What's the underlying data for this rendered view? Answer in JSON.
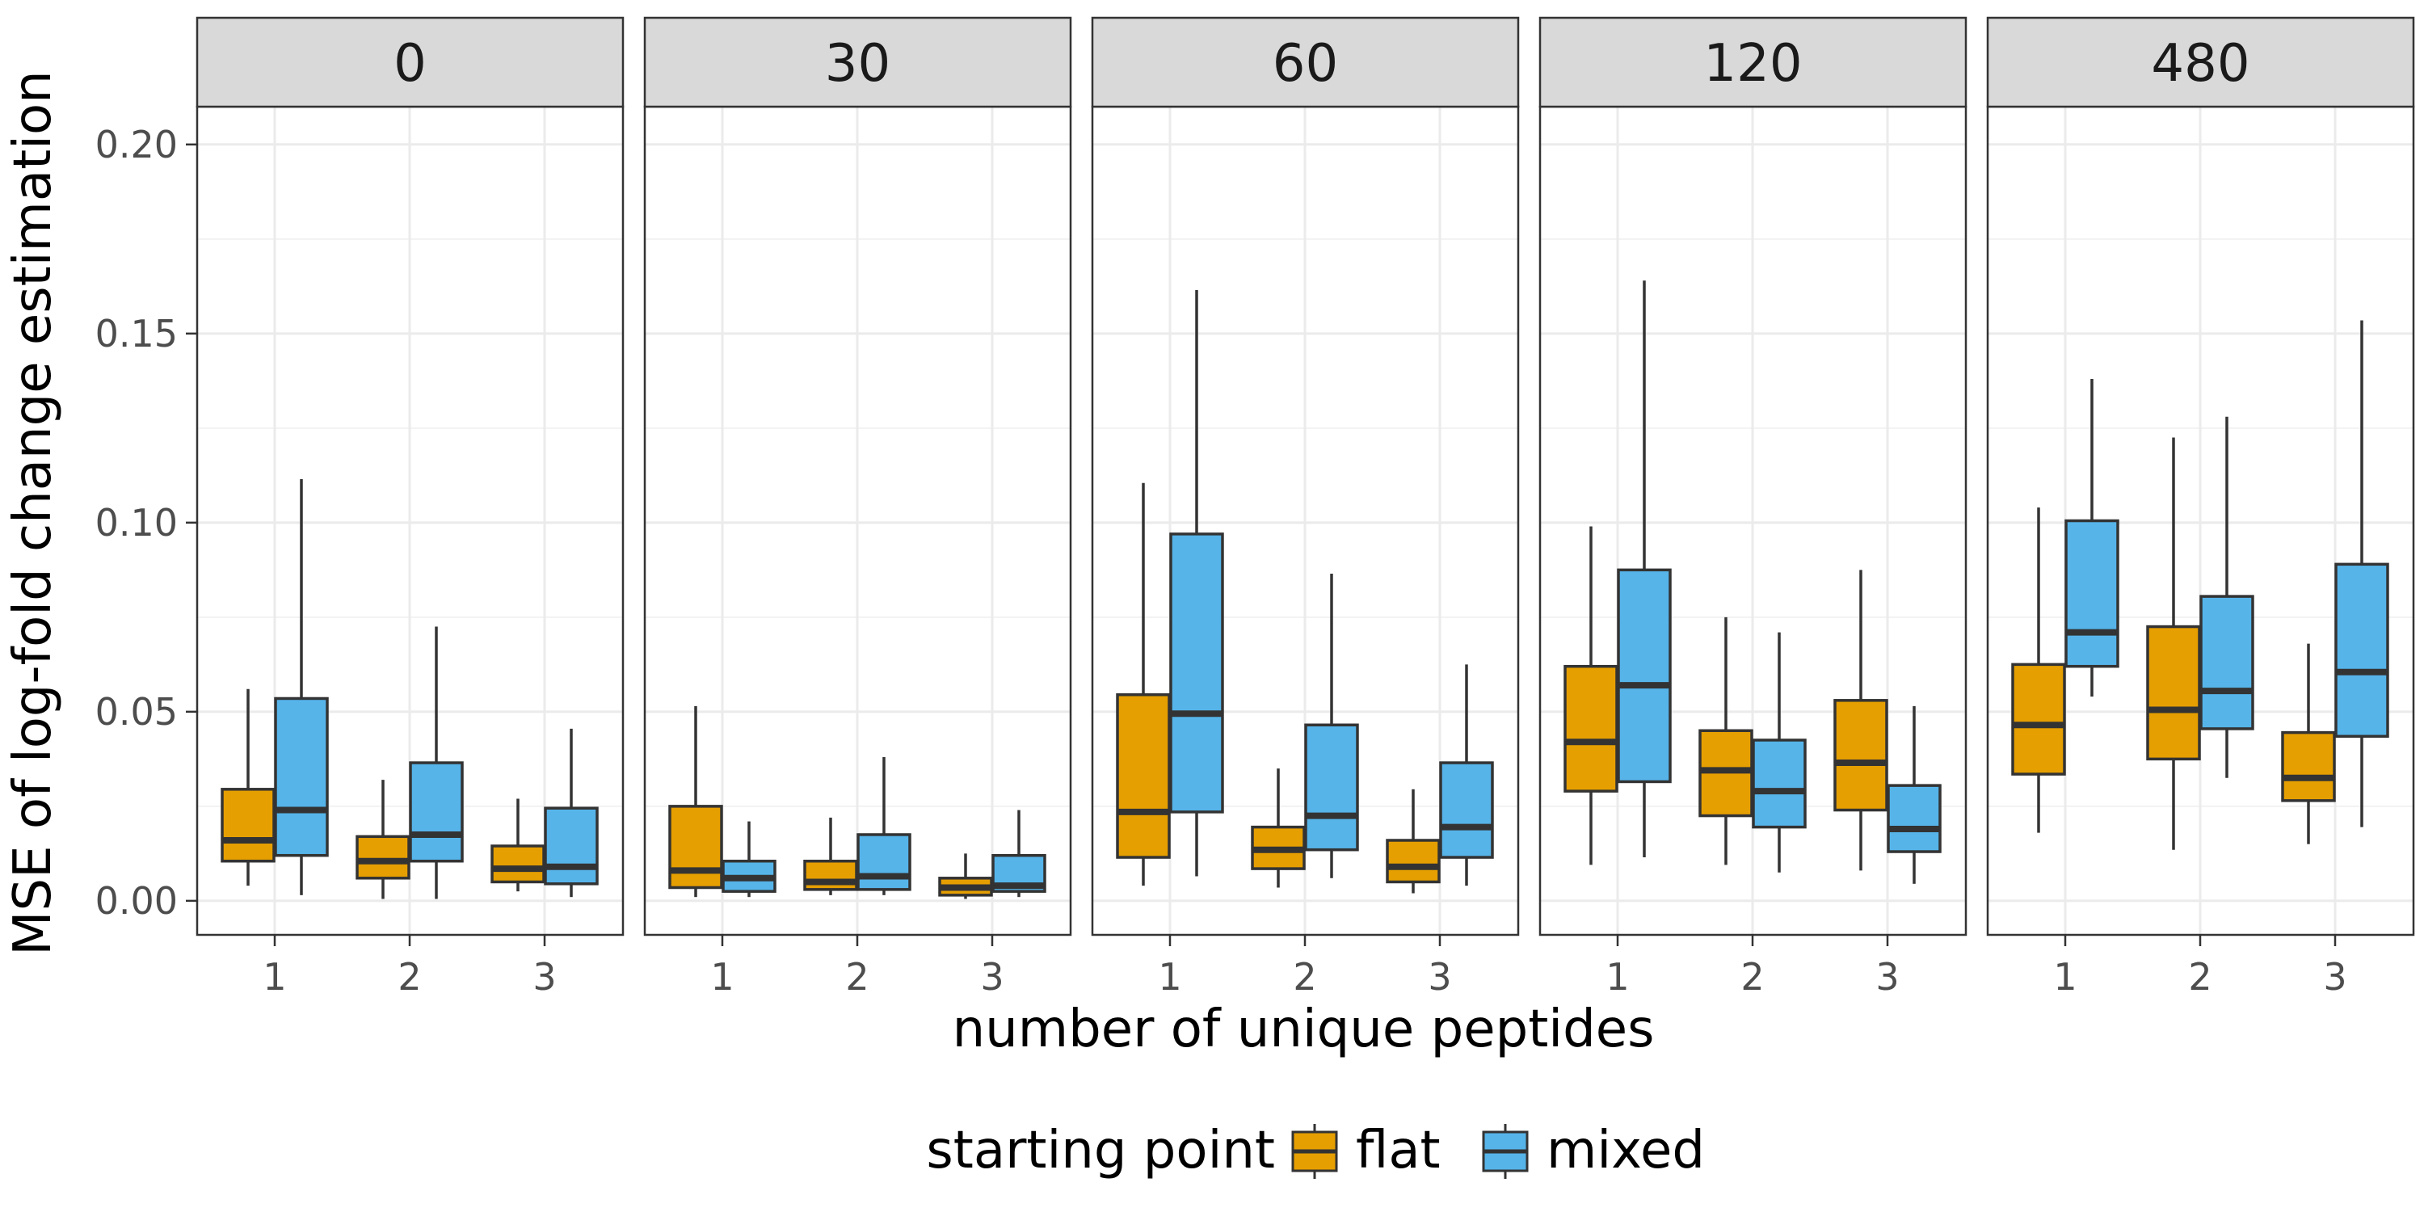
{
  "chart_data": {
    "type": "boxplot",
    "facets": [
      "0",
      "30",
      "60",
      "120",
      "480"
    ],
    "categories": [
      "1",
      "2",
      "3"
    ],
    "xlabel": "number of unique peptides",
    "ylabel": "MSE of log-fold change estimation",
    "ylim": [
      -0.009,
      0.21
    ],
    "yticks": [
      0.0,
      0.05,
      0.1,
      0.15,
      0.2
    ],
    "ytick_labels": [
      "0.00",
      "0.05",
      "0.10",
      "0.15",
      "0.20"
    ],
    "grid": true,
    "legend": {
      "title": "starting point",
      "position": "bottom",
      "entries": [
        "flat",
        "mixed"
      ]
    },
    "colors": {
      "flat": "#E69F00",
      "mixed": "#56B4E9"
    },
    "series": [
      {
        "name": "flat",
        "boxes": [
          [
            [
              0.004,
              0.0105,
              0.016,
              0.0295,
              0.056
            ],
            [
              0.0005,
              0.006,
              0.0105,
              0.017,
              0.032
            ],
            [
              0.0025,
              0.005,
              0.0085,
              0.0145,
              0.027
            ]
          ],
          [
            [
              0.001,
              0.0035,
              0.008,
              0.025,
              0.0515
            ],
            [
              0.0015,
              0.003,
              0.005,
              0.0105,
              0.022
            ],
            [
              0.0005,
              0.0015,
              0.0035,
              0.006,
              0.0125
            ]
          ],
          [
            [
              0.004,
              0.0115,
              0.0235,
              0.0545,
              0.1105
            ],
            [
              0.0035,
              0.0085,
              0.0135,
              0.0195,
              0.035
            ],
            [
              0.002,
              0.005,
              0.009,
              0.016,
              0.0295
            ]
          ],
          [
            [
              0.0095,
              0.029,
              0.042,
              0.062,
              0.099
            ],
            [
              0.0095,
              0.0225,
              0.0345,
              0.045,
              0.075
            ],
            [
              0.008,
              0.024,
              0.0365,
              0.053,
              0.0875
            ]
          ],
          [
            [
              0.018,
              0.0335,
              0.0465,
              0.0625,
              0.104
            ],
            [
              0.0135,
              0.0375,
              0.0505,
              0.0725,
              0.1225
            ],
            [
              0.015,
              0.0265,
              0.0325,
              0.0445,
              0.068
            ]
          ]
        ]
      },
      {
        "name": "mixed",
        "boxes": [
          [
            [
              0.0015,
              0.012,
              0.024,
              0.0535,
              0.1115
            ],
            [
              0.0005,
              0.0105,
              0.0175,
              0.0365,
              0.0725
            ],
            [
              0.001,
              0.0045,
              0.009,
              0.0245,
              0.0455
            ]
          ],
          [
            [
              0.001,
              0.0025,
              0.006,
              0.0105,
              0.021
            ],
            [
              0.0015,
              0.003,
              0.0065,
              0.0175,
              0.038
            ],
            [
              0.001,
              0.0025,
              0.004,
              0.012,
              0.024
            ]
          ],
          [
            [
              0.0065,
              0.0235,
              0.0495,
              0.097,
              0.1615
            ],
            [
              0.006,
              0.0135,
              0.0225,
              0.0465,
              0.0865
            ],
            [
              0.004,
              0.0115,
              0.0195,
              0.0365,
              0.0625
            ]
          ],
          [
            [
              0.0115,
              0.0315,
              0.057,
              0.0875,
              0.164
            ],
            [
              0.0075,
              0.0195,
              0.029,
              0.0425,
              0.071
            ],
            [
              0.0045,
              0.013,
              0.019,
              0.0305,
              0.0515
            ]
          ],
          [
            [
              0.054,
              0.062,
              0.071,
              0.1005,
              0.138
            ],
            [
              0.0325,
              0.0455,
              0.0555,
              0.0805,
              0.128
            ],
            [
              0.0195,
              0.0435,
              0.0605,
              0.089,
              0.1535
            ]
          ]
        ]
      }
    ]
  }
}
